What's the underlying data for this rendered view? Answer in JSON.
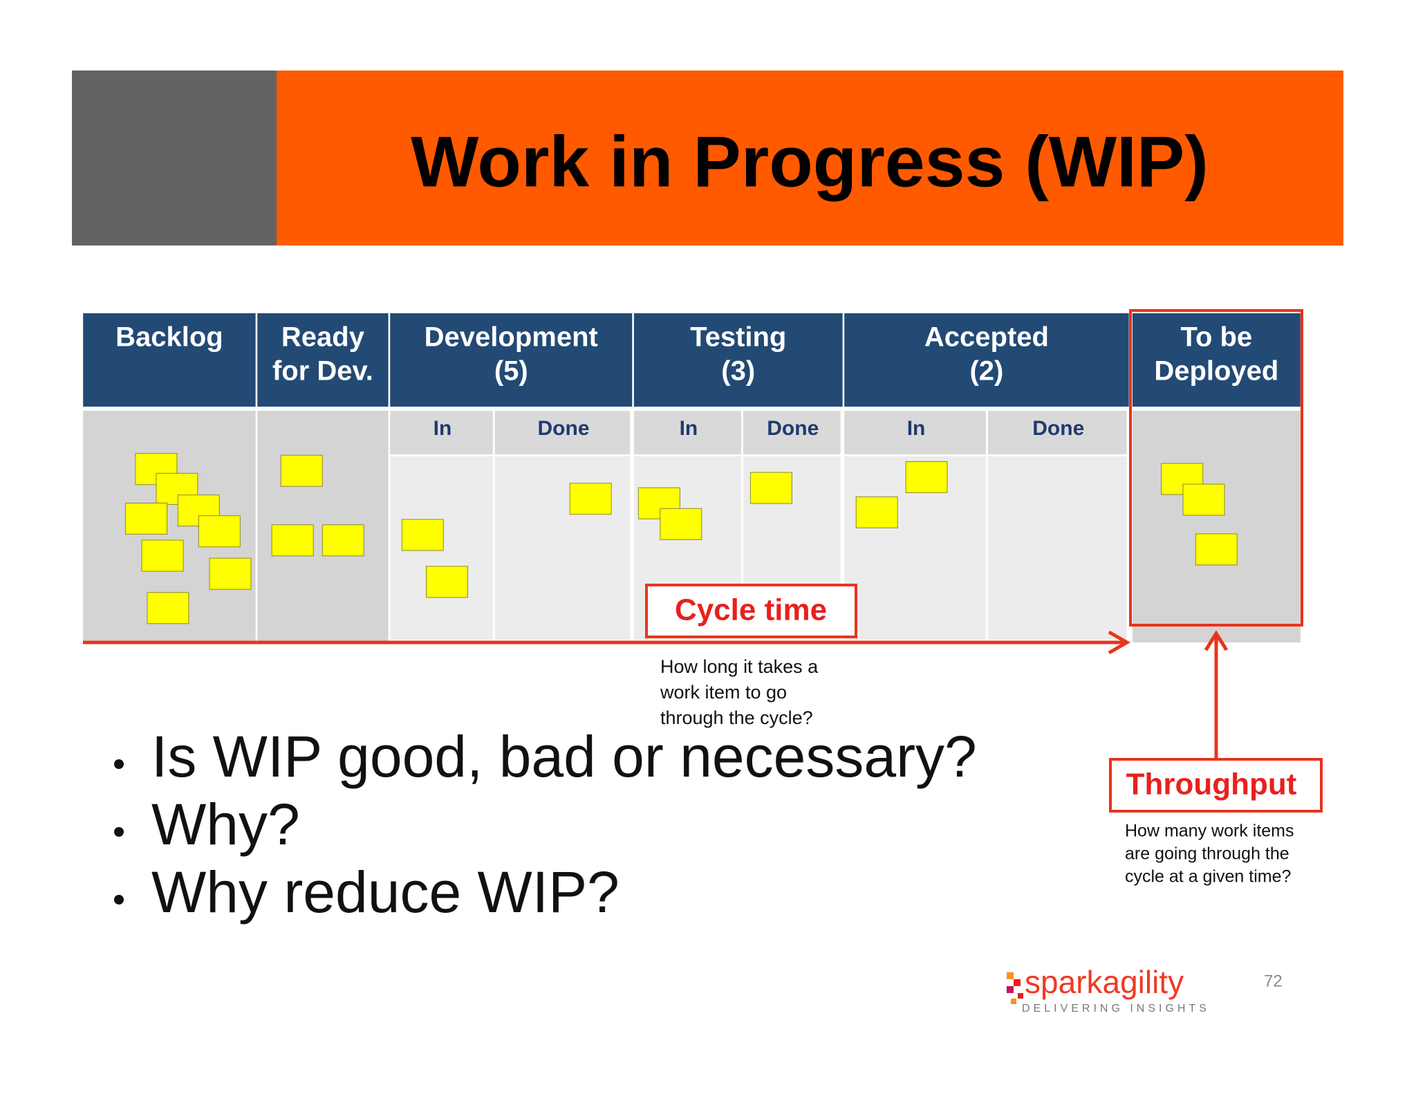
{
  "header": {
    "title": "Work in Progress (WIP)"
  },
  "board": {
    "columns": [
      {
        "label": [
          "Backlog"
        ]
      },
      {
        "label": [
          "Ready",
          "for Dev."
        ]
      },
      {
        "label": [
          "Development",
          "(5)"
        ],
        "sub": [
          "In",
          "Done"
        ]
      },
      {
        "label": [
          "Testing",
          "(3)"
        ],
        "sub": [
          "In",
          "Done"
        ]
      },
      {
        "label": [
          "Accepted",
          "(2)"
        ],
        "sub": [
          "In",
          "Done"
        ]
      },
      {
        "label": [
          "To be",
          "Deployed"
        ]
      }
    ]
  },
  "cycle_time": {
    "label": "Cycle time",
    "description": [
      "How long it takes a",
      "work item to go",
      "through the cycle?"
    ]
  },
  "throughput": {
    "label": "Throughput",
    "description": [
      "How many work items",
      "are going through the",
      "cycle at a given time?"
    ]
  },
  "bullets": [
    "Is WIP good, bad or necessary?",
    "Why?",
    "Why reduce WIP?"
  ],
  "logo": {
    "name": "sparkagility",
    "tagline": "DELIVERING INSIGHTS"
  },
  "page_number": "72"
}
